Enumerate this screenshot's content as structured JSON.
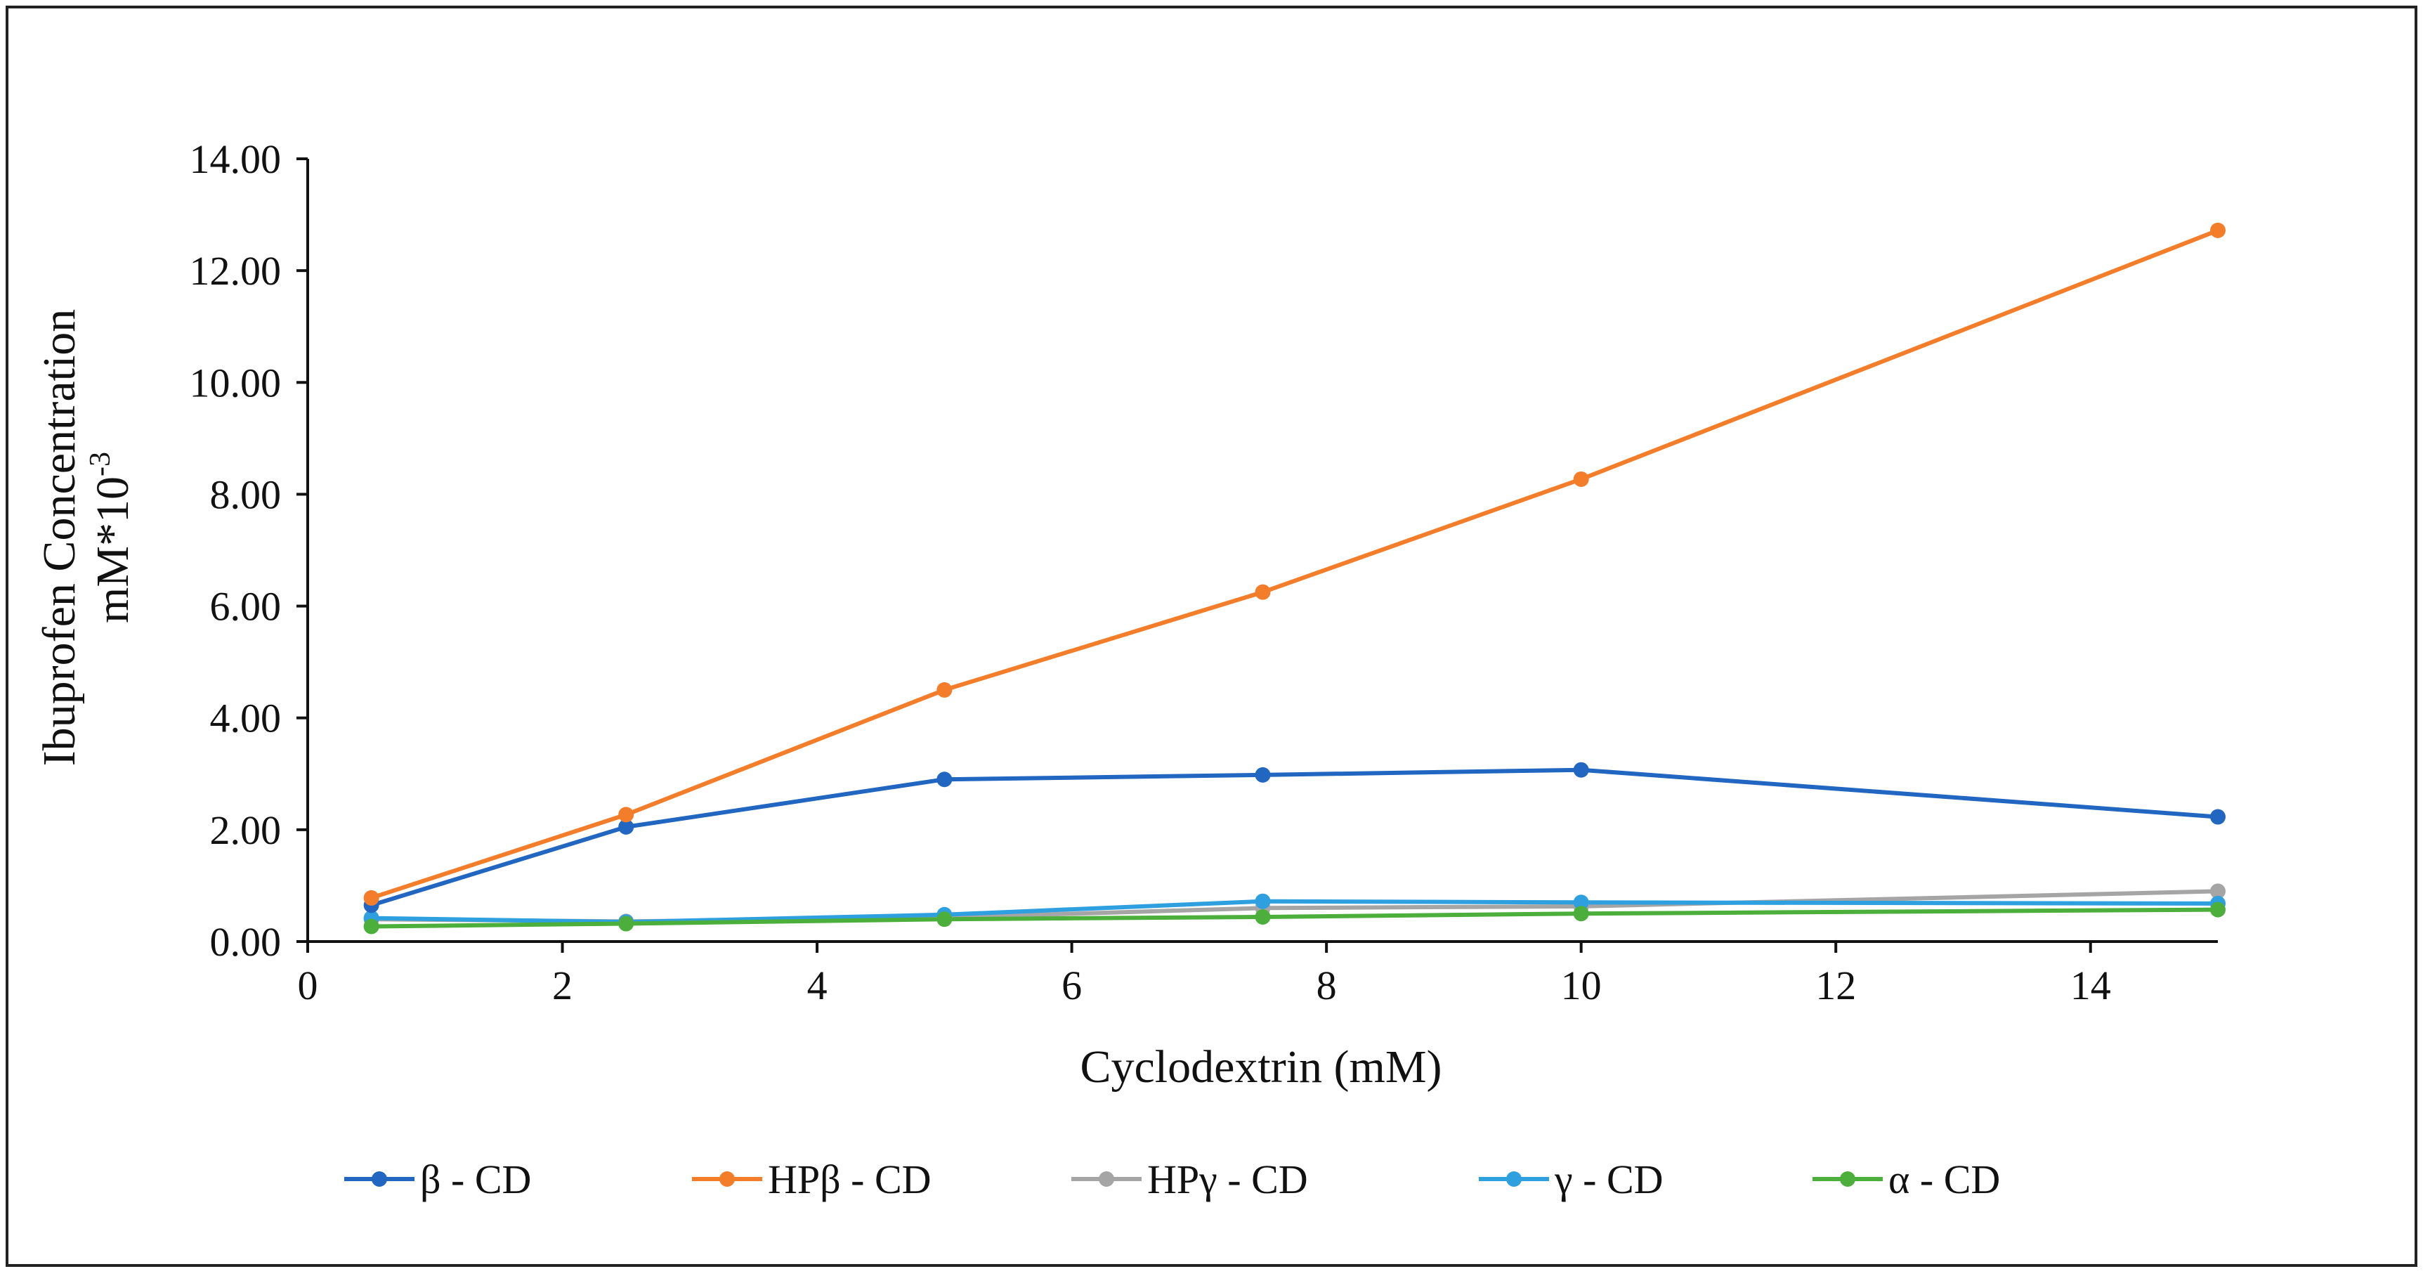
{
  "chart_data": {
    "type": "line",
    "title": "",
    "xlabel": "Cyclodextrin (mM)",
    "ylabel": "Ibuprofen Concentration",
    "ylabel_line2_base": "mM*10",
    "ylabel_line2_exp": "-3",
    "xlim": [
      0,
      15
    ],
    "ylim": [
      0,
      14
    ],
    "xticks": [
      0,
      2,
      4,
      6,
      8,
      10,
      12,
      14
    ],
    "yticks": [
      0,
      2,
      4,
      6,
      8,
      10,
      12,
      14
    ],
    "x_tick_labels": [
      "0",
      "2",
      "4",
      "6",
      "8",
      "10",
      "12",
      "14"
    ],
    "y_tick_labels": [
      "0.00",
      "2.00",
      "4.00",
      "6.00",
      "8.00",
      "10.00",
      "12.00",
      "14.00"
    ],
    "x": [
      0.5,
      2.5,
      5,
      7.5,
      10,
      15
    ],
    "legend_position": "bottom",
    "grid": false,
    "series": [
      {
        "name": "β - CD",
        "color": "#2166c0",
        "values": [
          0.65,
          2.05,
          2.9,
          2.98,
          3.07,
          2.23
        ]
      },
      {
        "name": "HPβ - CD",
        "color": "#f47d2a",
        "values": [
          0.78,
          2.27,
          4.5,
          6.25,
          8.27,
          12.72
        ]
      },
      {
        "name": "HPγ - CD",
        "color": "#a5a5a5",
        "values": [
          0.4,
          0.36,
          0.43,
          0.6,
          0.63,
          0.9
        ]
      },
      {
        "name": "γ - CD",
        "color": "#2e9fdf",
        "values": [
          0.42,
          0.35,
          0.48,
          0.72,
          0.7,
          0.68
        ]
      },
      {
        "name": "α - CD",
        "color": "#4caf3c",
        "values": [
          0.27,
          0.32,
          0.4,
          0.44,
          0.5,
          0.57
        ]
      }
    ]
  }
}
